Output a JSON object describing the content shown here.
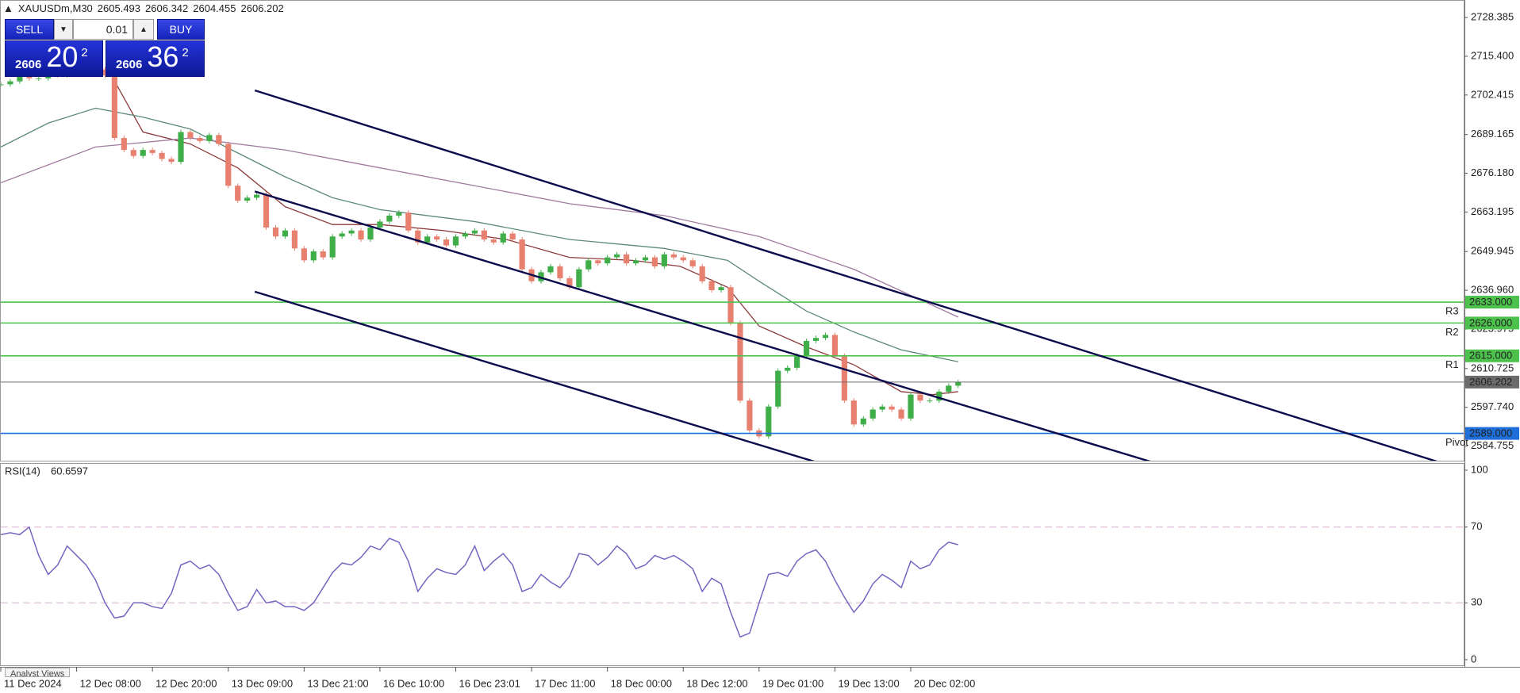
{
  "chart_data": [
    {
      "type": "candlestick",
      "title": "XAUUSDm,M30",
      "ohlc": [
        2605.493,
        2606.342,
        2604.455,
        2606.202
      ],
      "x": [
        0,
        3,
        6,
        9,
        12,
        15,
        18,
        21,
        24,
        27,
        30,
        33,
        36,
        39,
        42,
        45,
        48,
        51,
        54,
        57,
        60,
        63,
        66,
        69,
        72,
        75,
        78,
        81,
        84,
        87,
        90,
        93,
        96,
        99,
        102,
        105,
        108,
        111,
        114,
        117,
        120,
        123,
        126,
        129,
        132,
        135,
        138,
        141,
        144,
        147,
        150,
        153,
        156,
        159,
        162,
        165,
        168,
        171,
        174,
        177,
        180,
        183,
        186,
        189,
        192,
        195,
        198,
        201,
        204,
        207,
        210,
        213,
        216,
        219,
        222,
        225,
        228,
        231,
        234,
        237,
        240,
        243,
        246,
        249,
        252,
        255,
        258,
        261,
        264,
        267,
        270,
        273,
        276,
        279,
        282,
        285,
        288,
        291,
        294,
        297,
        300,
        303
      ],
      "close": [
        2706,
        2707,
        2709,
        2708,
        2708,
        2710,
        2709,
        2711,
        2710,
        2712,
        2711,
        2709,
        2688,
        2684,
        2682,
        2684,
        2683,
        2681,
        2680,
        2690,
        2688,
        2687,
        2689,
        2686,
        2672,
        2667,
        2668,
        2669,
        2658,
        2655,
        2657,
        2651,
        2647,
        2650,
        2648,
        2655,
        2656,
        2657,
        2654,
        2658,
        2660,
        2662,
        2663,
        2657,
        2653,
        2655,
        2654,
        2652,
        2655,
        2656,
        2657,
        2654,
        2653,
        2656,
        2654,
        2644,
        2640,
        2643,
        2645,
        2641,
        2638,
        2644,
        2647,
        2646,
        2648,
        2649,
        2646,
        2647,
        2648,
        2645,
        2649,
        2648,
        2647,
        2645,
        2640,
        2637,
        2638,
        2626,
        2600,
        2590,
        2588,
        2598,
        2610,
        2611,
        2615,
        2620,
        2621,
        2622,
        2615,
        2600,
        2592,
        2594,
        2597,
        2598,
        2597,
        2594,
        2602,
        2600,
        2600,
        2603,
        2605,
        2606.202
      ],
      "up_color": "#3fae49",
      "down_color": "#e8806f",
      "xlim": [
        0,
        463
      ],
      "xticks": [
        {
          "value": 0,
          "label": "11 Dec 2024"
        },
        {
          "value": 24,
          "label": "12 Dec 08:00"
        },
        {
          "value": 48,
          "label": "12 Dec 20:00"
        },
        {
          "value": 72,
          "label": "13 Dec 09:00"
        },
        {
          "value": 96,
          "label": "13 Dec 21:00"
        },
        {
          "value": 120,
          "label": "16 Dec 10:00"
        },
        {
          "value": 144,
          "label": "16 Dec 23:01"
        },
        {
          "value": 168,
          "label": "17 Dec 11:00"
        },
        {
          "value": 192,
          "label": "18 Dec 00:00"
        },
        {
          "value": 216,
          "label": "18 Dec 12:00"
        },
        {
          "value": 240,
          "label": "19 Dec 01:00"
        },
        {
          "value": 264,
          "label": "19 Dec 13:00"
        },
        {
          "value": 288,
          "label": "20 Dec 02:00"
        }
      ],
      "ylim": [
        2579.86,
        2734.26
      ],
      "yticks": [
        2728.385,
        {
          "value": 2715.4,
          "label": "2715.400"
        },
        2702.415,
        2689.165,
        {
          "value": 2676.18,
          "label": "2676.180"
        },
        2663.195,
        2649.945,
        {
          "value": 2636.96,
          "label": "2636.960"
        },
        2623.975,
        2610.725,
        {
          "value": 2597.74,
          "label": "2597.740"
        },
        2584.755
      ],
      "moving_averages": [
        {
          "color": "#8b3a3a",
          "x": [
            35,
            45,
            60,
            75,
            90,
            105,
            120,
            140,
            160,
            180,
            200,
            215,
            230,
            240,
            255,
            270,
            285,
            295,
            303
          ],
          "values": [
            2709,
            2690,
            2686,
            2678,
            2665,
            2659,
            2659,
            2657,
            2654,
            2648,
            2647,
            2645,
            2638,
            2625,
            2618,
            2612,
            2603,
            2602,
            2603
          ]
        },
        {
          "color": "#5c8a78",
          "x": [
            0,
            15,
            30,
            45,
            60,
            75,
            90,
            105,
            120,
            150,
            180,
            210,
            230,
            240,
            255,
            270,
            285,
            303
          ],
          "values": [
            2685,
            2693,
            2698,
            2695,
            2691,
            2683,
            2675,
            2668,
            2664,
            2660,
            2654,
            2651,
            2647,
            2640,
            2630,
            2623,
            2617,
            2613
          ]
        },
        {
          "color": "#a07aa0",
          "x": [
            0,
            30,
            60,
            90,
            120,
            150,
            180,
            210,
            240,
            270,
            303
          ],
          "values": [
            2673,
            2685,
            2688,
            2684,
            2678,
            2672,
            2666,
            2662,
            2655,
            2644,
            2628
          ]
        }
      ],
      "trendlines": [
        {
          "color": "#0b0b4d",
          "x": [
            80.4,
            462.6
          ],
          "values": [
            2703.96,
            2576.9
          ]
        },
        {
          "color": "#0b0b4d",
          "x": [
            80.4,
            364
          ],
          "values": [
            2670.1,
            2579.5
          ]
        },
        {
          "color": "#0b0b4d",
          "x": [
            80.4,
            257.7
          ],
          "values": [
            2636.5,
            2579.5
          ]
        }
      ],
      "levels": [
        {
          "value": 2633,
          "label": "2633.000",
          "marker": "R3",
          "color": "#4cc24c"
        },
        {
          "value": 2626,
          "label": "2626.000",
          "marker": "R2",
          "color": "#4cc24c"
        },
        {
          "value": 2615,
          "label": "2615.000",
          "marker": "R1",
          "color": "#4cc24c"
        },
        {
          "value": 2606.202,
          "label": "2606.202",
          "color": "#6b6b6b"
        },
        {
          "value": 2589,
          "label": "2589.000",
          "marker": "Pivot",
          "color": "#1e6fd9"
        }
      ]
    },
    {
      "type": "line",
      "title": "RSI(14)",
      "current": 60.6597,
      "color": "#7565c0",
      "x": [
        0,
        3,
        6,
        9,
        12,
        15,
        18,
        21,
        24,
        27,
        30,
        33,
        36,
        39,
        42,
        45,
        48,
        51,
        54,
        57,
        60,
        63,
        66,
        69,
        72,
        75,
        78,
        81,
        84,
        87,
        90,
        93,
        96,
        99,
        102,
        105,
        108,
        111,
        114,
        117,
        120,
        123,
        126,
        129,
        132,
        135,
        138,
        141,
        144,
        147,
        150,
        153,
        156,
        159,
        162,
        165,
        168,
        171,
        174,
        177,
        180,
        183,
        186,
        189,
        192,
        195,
        198,
        201,
        204,
        207,
        210,
        213,
        216,
        219,
        222,
        225,
        228,
        231,
        234,
        237,
        240,
        243,
        246,
        249,
        252,
        255,
        258,
        261,
        264,
        267,
        270,
        273,
        276,
        279,
        282,
        285,
        288,
        291,
        294,
        297,
        300,
        303
      ],
      "values": [
        66,
        67,
        66,
        70,
        55,
        45,
        50,
        60,
        55,
        50,
        42,
        30,
        22,
        23,
        30,
        30,
        28,
        27,
        35,
        50,
        52,
        48,
        50,
        45,
        35,
        26,
        28,
        37,
        30,
        31,
        28,
        28,
        26,
        30,
        38,
        46,
        51,
        50,
        54,
        60,
        58,
        64,
        62,
        52,
        36,
        43,
        48,
        46,
        45,
        50,
        60,
        47,
        52,
        56,
        50,
        36,
        38,
        45,
        41,
        38,
        44,
        56,
        55,
        50,
        54,
        60,
        56,
        48,
        50,
        55,
        53,
        55,
        52,
        48,
        36,
        43,
        40,
        25,
        12,
        14,
        30,
        45,
        46,
        44,
        52,
        56,
        58,
        52,
        42,
        33,
        25,
        31,
        40,
        45,
        42,
        38,
        52,
        48,
        50,
        58,
        62,
        60.6597
      ],
      "xlim": [
        0,
        463
      ],
      "ylim": [
        0,
        100
      ],
      "yticks": [
        100,
        70,
        30,
        0
      ],
      "levels": [
        70,
        30
      ],
      "level_color": "#d9aecf"
    }
  ],
  "trade_panel": {
    "sell": "SELL",
    "buy": "BUY",
    "lot": 0.01,
    "sell_price": {
      "big": 2606,
      "pips": 20,
      "point": 2
    },
    "buy_price": {
      "big": 2606,
      "pips": 36,
      "point": 2
    }
  },
  "footer_tab": "Analyst Views"
}
